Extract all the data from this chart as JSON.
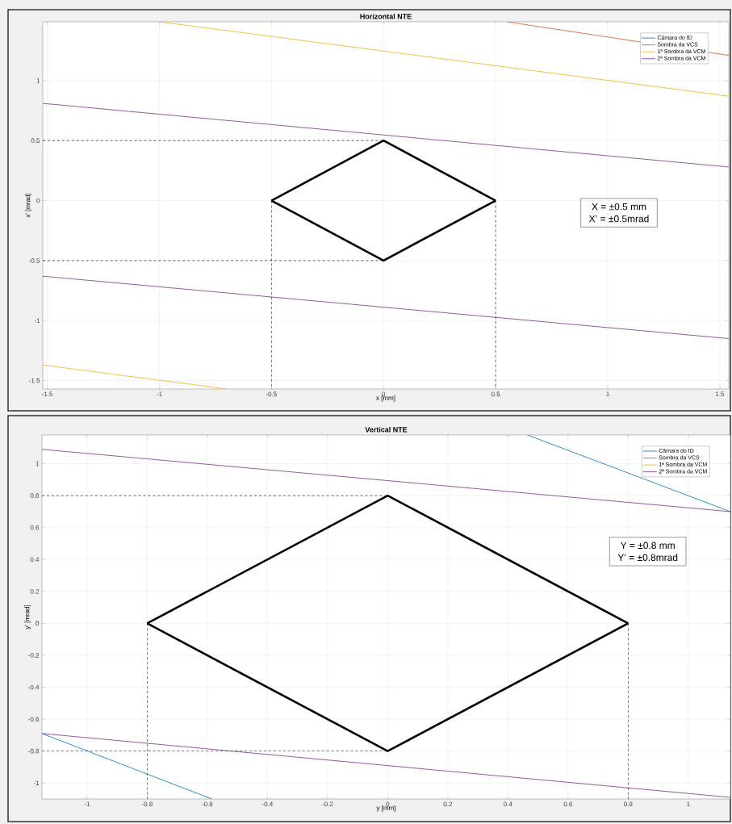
{
  "chart_data": [
    {
      "type": "line",
      "title": "Horizontal NTE",
      "xlabel": "x [mm]",
      "ylabel": "x' [mrad]",
      "xlim": [
        -1.52,
        1.54
      ],
      "ylim": [
        -1.57,
        1.49
      ],
      "xticks": [
        -1.5,
        -1,
        -0.5,
        0,
        0.5,
        1,
        1.5
      ],
      "yticks": [
        -1.5,
        -1,
        -0.5,
        0,
        0.5,
        1
      ],
      "grid": true,
      "legend": "top right",
      "annotations": [
        "X = ±0.5 mm",
        "X’ = ±0.5mrad"
      ],
      "series": [
        {
          "name": "Câmara do ID",
          "color": "#0072bd"
        },
        {
          "name": "Sombra da VCS",
          "color": "#d95319",
          "x": [
            0.55,
            1.54
          ],
          "values": [
            1.49,
            1.21
          ]
        },
        {
          "name": "1ª Sombra da VCM",
          "color": "#edb120",
          "x": [
            -1.0,
            1.54
          ],
          "values": [
            1.49,
            0.87
          ]
        },
        {
          "name": "2ª Sombra da VCM",
          "color": "#7e2f8e",
          "x": [
            -1.52,
            1.54
          ],
          "values": [
            0.81,
            0.28
          ]
        },
        {
          "color": "#7e2f8e",
          "x": [
            -1.52,
            1.54
          ],
          "values": [
            -0.63,
            -1.15
          ]
        },
        {
          "color": "#edb120",
          "x": [
            -1.52,
            -0.7
          ],
          "values": [
            -1.37,
            -1.57
          ]
        },
        {
          "color": "#000000",
          "x": [
            -0.5,
            0,
            0.5
          ],
          "values": [
            0,
            0.5,
            0
          ]
        },
        {
          "color": "#000000",
          "x": [
            -0.5,
            0,
            0.5
          ],
          "values": [
            0,
            -0.5,
            0
          ]
        },
        {
          "color": "#000000",
          "line_style": "dashed",
          "x": [
            -1.52,
            0
          ],
          "values": [
            0.5,
            0.5
          ]
        },
        {
          "color": "#000000",
          "line_style": "dashed",
          "x": [
            -1.52,
            0
          ],
          "values": [
            -0.5,
            -0.5
          ]
        },
        {
          "color": "#000000",
          "line_style": "dashed",
          "x": [
            -0.5,
            -0.5
          ],
          "values": [
            0,
            -1.57
          ]
        },
        {
          "color": "#000000",
          "line_style": "dashed",
          "x": [
            0.5,
            0.5
          ],
          "values": [
            0,
            -1.57
          ]
        }
      ]
    },
    {
      "type": "line",
      "title": "Vertical NTE",
      "xlabel": "y [mm]",
      "ylabel": "y' [mrad]",
      "xlim": [
        -1.15,
        1.14
      ],
      "ylim": [
        -1.1,
        1.18
      ],
      "xticks": [
        -1,
        -0.8,
        -0.6,
        -0.4,
        -0.2,
        0,
        0.2,
        0.4,
        0.6,
        0.8,
        1
      ],
      "yticks": [
        -1,
        -0.8,
        -0.6,
        -0.4,
        -0.2,
        0,
        0.2,
        0.4,
        0.6,
        0.8,
        1
      ],
      "grid": true,
      "legend": "top right",
      "annotations": [
        "Y = ±0.8 mm",
        "Y’ = ±0.8mrad"
      ],
      "series": [
        {
          "name": "Câmara do ID",
          "color": "#0072bd",
          "x": [
            0.465,
            1.14
          ],
          "values": [
            1.18,
            0.7
          ]
        },
        {
          "name": "Sombra da VCS",
          "color": "#d95319"
        },
        {
          "name": "1ª Sombra da VCM",
          "color": "#edb120"
        },
        {
          "name": "2ª Sombra da VCM",
          "color": "#7e2f8e",
          "x": [
            -1.15,
            1.14
          ],
          "values": [
            1.09,
            0.7
          ]
        },
        {
          "color": "#7e2f8e",
          "x": [
            -1.15,
            1.14
          ],
          "values": [
            -0.69,
            -1.09
          ]
        },
        {
          "color": "#0072bd",
          "x": [
            -1.15,
            -0.585
          ],
          "values": [
            -0.69,
            -1.1
          ]
        },
        {
          "color": "#000000",
          "x": [
            -0.8,
            0,
            0.8
          ],
          "values": [
            0,
            0.8,
            0
          ]
        },
        {
          "color": "#000000",
          "x": [
            -0.8,
            0,
            0.8
          ],
          "values": [
            0,
            -0.8,
            0
          ]
        },
        {
          "color": "#000000",
          "line_style": "dashed",
          "x": [
            -1.15,
            0
          ],
          "values": [
            0.8,
            0.8
          ]
        },
        {
          "color": "#000000",
          "line_style": "dashed",
          "x": [
            -1.15,
            0
          ],
          "values": [
            -0.8,
            -0.8
          ]
        },
        {
          "color": "#000000",
          "line_style": "dashed",
          "x": [
            -0.8,
            -0.8
          ],
          "values": [
            0,
            -1.1
          ]
        },
        {
          "color": "#000000",
          "line_style": "dashed",
          "x": [
            0.8,
            0.8
          ],
          "values": [
            0,
            -1.1
          ]
        }
      ]
    }
  ]
}
